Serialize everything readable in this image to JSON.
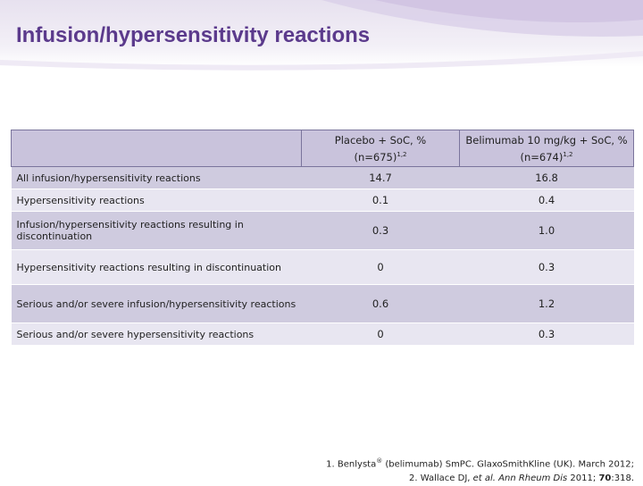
{
  "slide": {
    "title": "Infusion/hypersensitivity reactions"
  },
  "table": {
    "headers": [
      {
        "main": "Placebo + SoC, %",
        "sub": "(n=675)",
        "sup": "1,2"
      },
      {
        "main": "Belimumab 10 mg/kg + SoC, %",
        "sub": "(n=674)",
        "sup": "1,2"
      }
    ],
    "rows": [
      {
        "label": "All infusion/hypersensitivity reactions",
        "placebo": "14.7",
        "belimumab": "16.8"
      },
      {
        "label": "Hypersensitivity reactions",
        "placebo": "0.1",
        "belimumab": "0.4"
      },
      {
        "label": "Infusion/hypersensitivity reactions resulting in discontinuation",
        "placebo": "0.3",
        "belimumab": "1.0"
      },
      {
        "label": "Hypersensitivity reactions resulting in discontinuation",
        "placebo": "0",
        "belimumab": "0.3"
      },
      {
        "label": "Serious and/or severe infusion/hypersensitivity reactions",
        "placebo": "0.6",
        "belimumab": "1.2"
      },
      {
        "label": "Serious and/or severe hypersensitivity reactions",
        "placebo": "0",
        "belimumab": "0.3"
      }
    ]
  },
  "references": {
    "ref1_pre": "1. Benlysta",
    "ref1_reg": "®",
    "ref1_post": " (belimumab) SmPC. GlaxoSmithKline (UK). March 2012;",
    "ref2_pre": "2. Wallace DJ, ",
    "ref2_italic": "et al. Ann Rheum Dis",
    "ref2_mid": " 2011; ",
    "ref2_bold": "70",
    "ref2_post": ":318."
  },
  "colors": {
    "title": "#5b3a8c",
    "header_fill": "#c9c3dc",
    "row_dark": "#cfcbdf",
    "row_light": "#e8e6f1"
  }
}
